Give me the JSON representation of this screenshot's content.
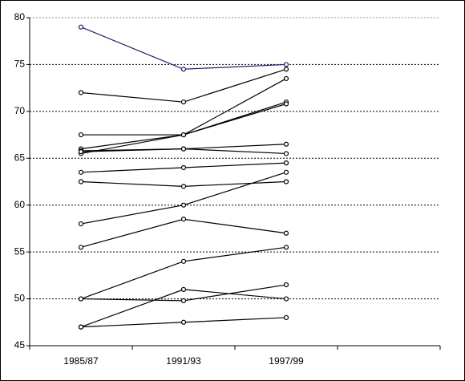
{
  "chart_data": {
    "type": "line",
    "categories": [
      "1985/87",
      "1991/93",
      "1997/99",
      null
    ],
    "series": [
      {
        "color": "#1a1a6e",
        "values": [
          79,
          74.5,
          75,
          null
        ]
      },
      {
        "color": "#000000",
        "values": [
          72,
          71,
          74.5,
          null
        ]
      },
      {
        "color": "#000000",
        "values": [
          67.5,
          67.5,
          73.5,
          null
        ]
      },
      {
        "color": "#000000",
        "values": [
          66,
          67.5,
          71,
          null
        ]
      },
      {
        "color": "#000000",
        "values": [
          65.5,
          67.5,
          70.8,
          null
        ]
      },
      {
        "color": "#000000",
        "values": [
          65.8,
          66,
          66.5,
          null
        ]
      },
      {
        "color": "#000000",
        "values": [
          65.7,
          66,
          65.5,
          null
        ]
      },
      {
        "color": "#000000",
        "values": [
          63.5,
          64,
          64.5,
          null
        ]
      },
      {
        "color": "#000000",
        "values": [
          62.5,
          62,
          62.5,
          null
        ]
      },
      {
        "color": "#000000",
        "values": [
          58,
          60,
          63.5,
          null
        ]
      },
      {
        "color": "#000000",
        "values": [
          55.5,
          58.5,
          57,
          null
        ]
      },
      {
        "color": "#000000",
        "values": [
          50,
          54,
          55.5,
          null
        ]
      },
      {
        "color": "#000000",
        "values": [
          50,
          49.8,
          51.5,
          null
        ]
      },
      {
        "color": "#000000",
        "values": [
          47,
          51,
          50,
          null
        ]
      },
      {
        "color": "#000000",
        "values": [
          47,
          47.5,
          48,
          null
        ]
      }
    ],
    "ylim": [
      45,
      80
    ],
    "yticks": [
      45,
      50,
      55,
      60,
      65,
      70,
      75,
      80
    ],
    "grid": true
  }
}
